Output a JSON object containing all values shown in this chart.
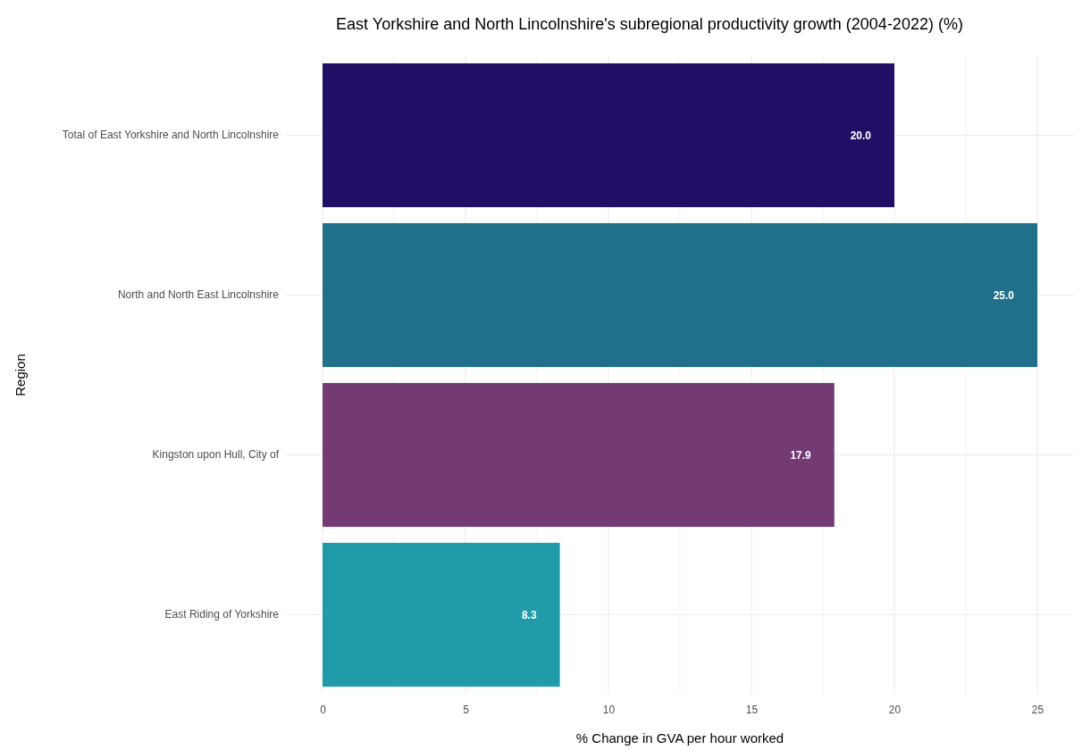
{
  "chart_data": {
    "type": "bar",
    "orientation": "horizontal",
    "title": "East Yorkshire and North Lincolnshire's subregional productivity growth (2004-2022) (%)",
    "xlabel": "% Change in GVA per hour worked",
    "ylabel": "Region",
    "categories": [
      "Total of East Yorkshire and North Lincolnshire",
      "North and North East Lincolnshire",
      "Kingston upon Hull, City of",
      "East Riding of Yorkshire"
    ],
    "values": [
      20.0,
      25.0,
      17.9,
      8.3
    ],
    "colors": [
      "#220f65",
      "#217089",
      "#733a73",
      "#219aa9"
    ],
    "value_labels": [
      "20.0",
      "25.0",
      "17.9",
      "8.3"
    ],
    "xlim": [
      -1.25,
      26.25
    ],
    "xticks": [
      0,
      {
        "value": 2.5,
        "label": null
      },
      5,
      {
        "value": 7.5,
        "label": null
      },
      10,
      {
        "value": 12.5,
        "label": null
      },
      15,
      {
        "value": 17.5,
        "label": null
      },
      20,
      {
        "value": 22.5,
        "label": null
      },
      25
    ],
    "grid": true
  }
}
